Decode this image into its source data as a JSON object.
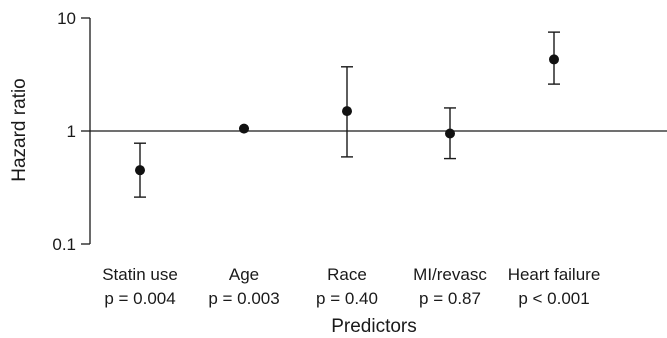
{
  "chart_data": {
    "type": "scatter",
    "title": "",
    "xlabel": "Predictors",
    "ylabel": "Hazard ratio",
    "yscale": "log",
    "ylim": [
      0.1,
      10
    ],
    "yticks": [
      {
        "value": 0.1,
        "label": "0.1"
      },
      {
        "value": 1,
        "label": "1"
      },
      {
        "value": 10,
        "label": "10"
      }
    ],
    "reference_line": 1,
    "grid": false,
    "legend": "none",
    "points": [
      {
        "category": "Statin use",
        "p_label": "p = 0.004",
        "hr": 0.45,
        "lower": 0.26,
        "upper": 0.78
      },
      {
        "category": "Age",
        "p_label": "p = 0.003",
        "hr": 1.05,
        "lower": null,
        "upper": null
      },
      {
        "category": "Race",
        "p_label": "p = 0.40",
        "hr": 1.5,
        "lower": 0.59,
        "upper": 3.7
      },
      {
        "category": "MI/revasc",
        "p_label": "p = 0.87",
        "hr": 0.95,
        "lower": 0.57,
        "upper": 1.6
      },
      {
        "category": "Heart failure",
        "p_label": "p < 0.001",
        "hr": 4.3,
        "lower": 2.6,
        "upper": 7.5
      }
    ]
  }
}
